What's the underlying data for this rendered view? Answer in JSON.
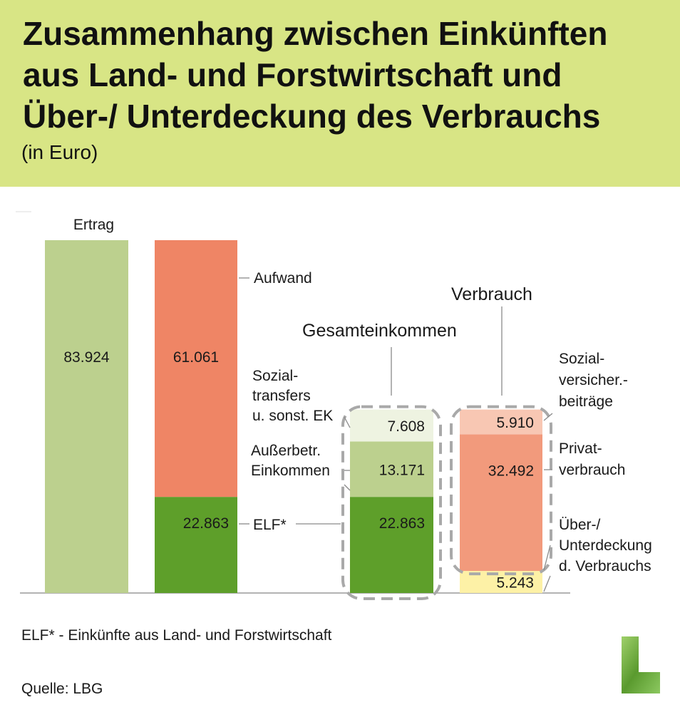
{
  "header": {
    "title_lines": [
      "Zusammenhang zwischen Einkünften",
      "aus Land- und Forstwirtschaft und",
      "Über-/ Unterdeckung des Verbrauchs"
    ],
    "subtitle": "(in Euro)"
  },
  "chart_data": {
    "type": "bar",
    "stacked": true,
    "unit": "Euro",
    "bars": [
      {
        "label": "Ertrag",
        "segments": [
          {
            "name": "Ertrag",
            "value": 83924,
            "label": "83.924",
            "color": "#bcd08e"
          }
        ]
      },
      {
        "label": "",
        "segments": [
          {
            "name": "ELF*",
            "value": 22863,
            "label": "22.863",
            "color": "#5e9f2a"
          },
          {
            "name": "Aufwand",
            "value": 61061,
            "label": "61.061",
            "color": "#ef8565"
          }
        ]
      },
      {
        "label": "Gesamteinkommen",
        "segments": [
          {
            "name": "ELF*",
            "value": 22863,
            "label": "22.863",
            "color": "#5e9f2a"
          },
          {
            "name": "Außerbetr. Einkommen",
            "value": 13171,
            "label": "13.171",
            "color": "#bcd08e"
          },
          {
            "name": "Sozialtransfers u. sonst. EK",
            "value": 7608,
            "label": "7.608",
            "color": "#eef3e1"
          }
        ]
      },
      {
        "label": "Verbrauch",
        "segments": [
          {
            "name": "Über-/ Unterdeckung d. Verbrauchs",
            "value": 5243,
            "label": "5.243",
            "color": "#fdf1a6",
            "negative": true
          },
          {
            "name": "Privatverbrauch",
            "value": 32492,
            "label": "32.492",
            "color": "#f29a7c"
          },
          {
            "name": "Sozialversicher.-beiträge",
            "value": 5910,
            "label": "5.910",
            "color": "#f8c7b3"
          }
        ]
      }
    ],
    "annotations": {
      "aufwand": [
        "Aufwand"
      ],
      "sozialtransfers": [
        "Sozial-",
        "transfers",
        "u. sonst. EK"
      ],
      "ausserbetr": [
        "Außerbetr.",
        "Einkommen"
      ],
      "elf": [
        "ELF*"
      ],
      "gesamteinkommen": [
        "Gesamteinkommen"
      ],
      "verbrauch": [
        "Verbrauch"
      ],
      "sozialvers": [
        "Sozial-",
        "versicher.-",
        "beiträge"
      ],
      "privatverbrauch": [
        "Privat-",
        "verbrauch"
      ],
      "deckung": [
        "Über-/",
        "Unterdeckung",
        "d. Verbrauchs"
      ]
    }
  },
  "footer": {
    "footnote": "ELF* - Einkünfte aus Land- und Forstwirtschaft",
    "source": "Quelle: LBG"
  },
  "logo": {
    "icon": "L-logo-icon",
    "color": "#6aa63a"
  }
}
